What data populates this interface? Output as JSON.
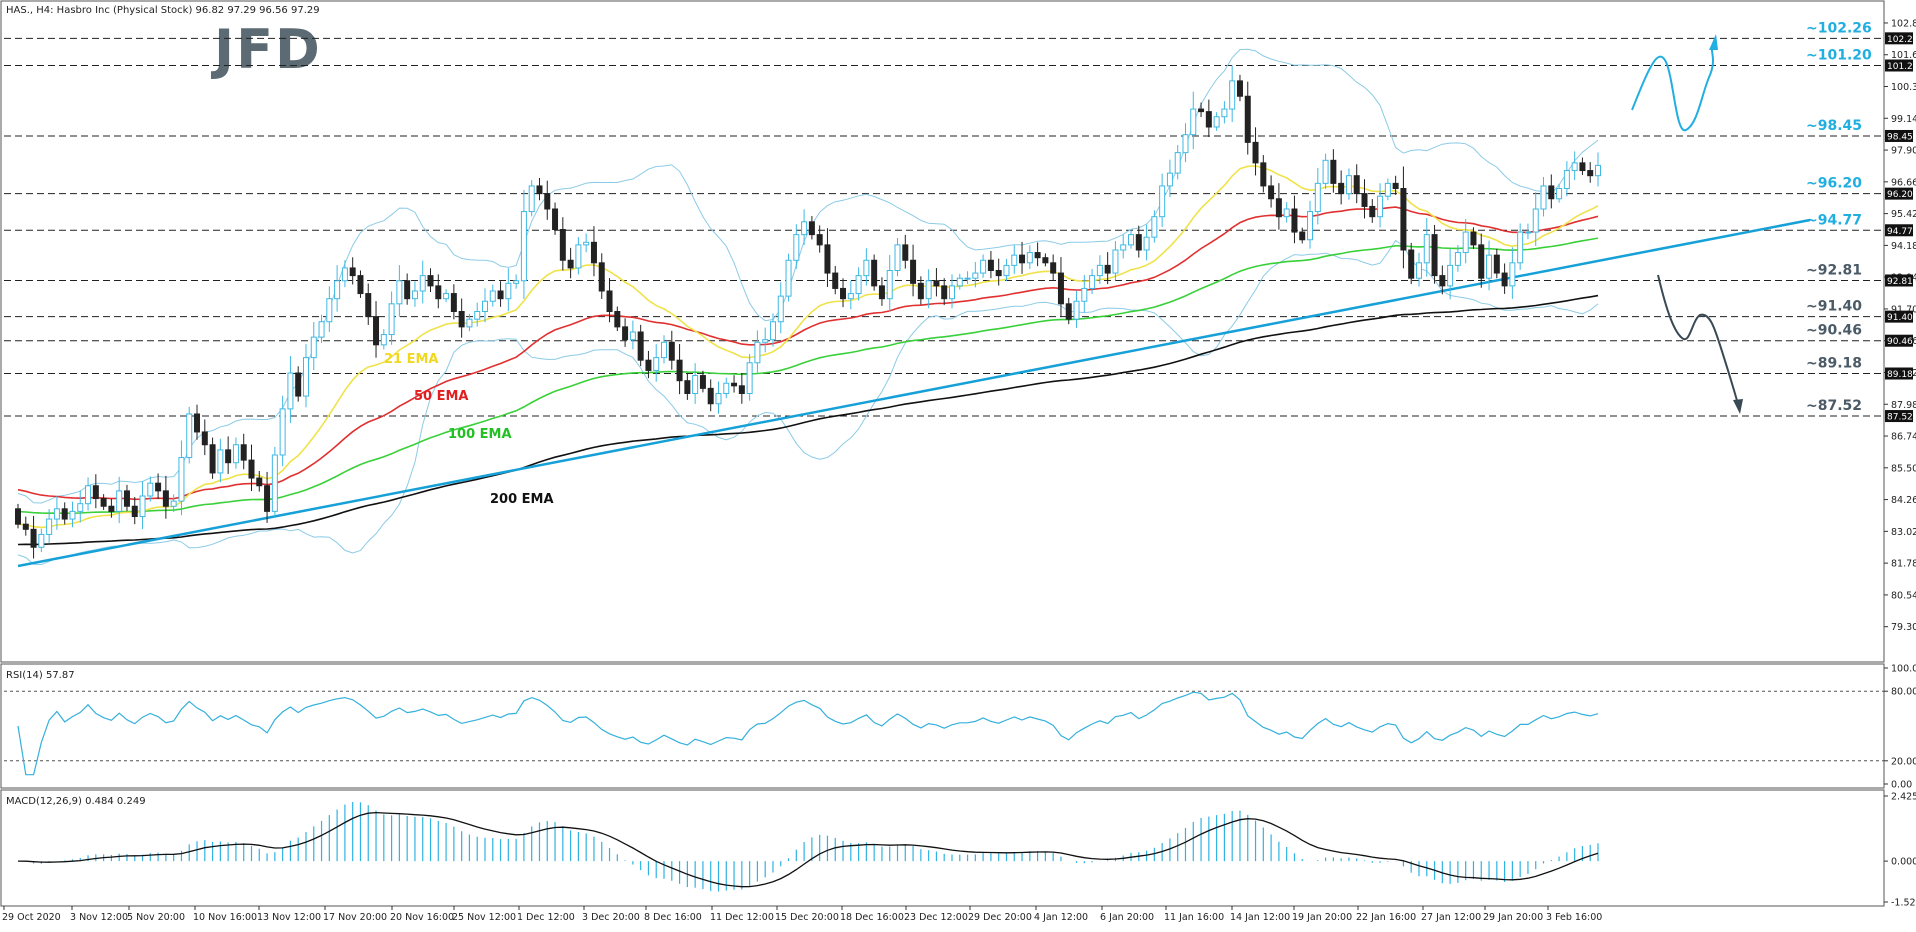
{
  "header": {
    "instrument": "HAS., H4:  Hasbro Inc (Physical Stock)  96.82 97.29 96.56 97.29",
    "logo": "JFD"
  },
  "colors": {
    "up_candle": "#3fb8e4",
    "down_candle": "#222222",
    "ema21": "#f0e24a",
    "ema50": "#e03030",
    "ema100": "#3ad03a",
    "ema200": "#111111",
    "bollinger": "#8ccbe6",
    "trendline": "#16a0d8",
    "annotation": "#21aee0",
    "rsi": "#35b0dc",
    "macd_hist": "#2fb3e2",
    "macd_signal": "#111111",
    "bearish_path": "#3a4a55"
  },
  "chart_data": [
    {
      "type": "candlestick",
      "title": "HAS., H4:  Hasbro Inc (Physical Stock)  96.82 97.29 96.56 97.29",
      "ylim": [
        78.0,
        103.6
      ],
      "y_ticks": [
        "102.86",
        "101.62",
        "100.38",
        "99.14",
        "97.90",
        "96.66",
        "95.42",
        "94.18",
        "92.94",
        "91.70",
        "90.46",
        "89.22",
        "87.98",
        "86.74",
        "85.50",
        "84.26",
        "83.02",
        "81.78",
        "80.54",
        "79.30"
      ],
      "x_ticks": [
        "29 Oct 2020",
        "3 Nov 12:00",
        "5 Nov 20:00",
        "10 Nov 16:00",
        "13 Nov 12:00",
        "17 Nov 20:00",
        "20 Nov 16:00",
        "25 Nov 12:00",
        "1 Dec 12:00",
        "3 Dec 20:00",
        "8 Dec 16:00",
        "11 Dec 12:00",
        "15 Dec 20:00",
        "18 Dec 16:00",
        "23 Dec 12:00",
        "29 Dec 20:00",
        "4 Jan 12:00",
        "6 Jan 20:00",
        "11 Jan 16:00",
        "14 Jan 12:00",
        "19 Jan 20:00",
        "22 Jan 16:00",
        "27 Jan 12:00",
        "29 Jan 20:00",
        "3 Feb 16:00"
      ],
      "closes": [
        83.3,
        83.1,
        82.4,
        82.9,
        83.5,
        83.9,
        83.5,
        83.8,
        84.1,
        84.8,
        84.3,
        84.0,
        83.8,
        84.6,
        84.0,
        83.6,
        84.4,
        84.9,
        84.6,
        84.0,
        84.2,
        85.9,
        87.6,
        86.9,
        86.4,
        85.3,
        86.2,
        85.7,
        86.4,
        85.8,
        85.1,
        84.8,
        83.8,
        86.0,
        87.8,
        89.2,
        88.3,
        89.8,
        90.6,
        91.2,
        92.1,
        92.8,
        93.3,
        93.0,
        92.3,
        91.4,
        90.3,
        90.7,
        91.9,
        92.8,
        92.1,
        92.4,
        93.0,
        92.6,
        92.1,
        92.3,
        91.6,
        91.0,
        91.3,
        91.6,
        92.0,
        92.4,
        92.1,
        92.7,
        92.8,
        95.5,
        96.5,
        96.2,
        95.6,
        94.8,
        93.6,
        93.3,
        94.2,
        94.3,
        93.5,
        92.4,
        91.6,
        91.0,
        90.5,
        90.8,
        89.7,
        89.3,
        89.8,
        90.4,
        89.7,
        88.9,
        88.4,
        89.1,
        88.6,
        88.0,
        88.4,
        88.8,
        88.7,
        88.4,
        89.6,
        90.4,
        90.5,
        91.2,
        92.2,
        93.6,
        94.6,
        95.1,
        94.6,
        94.2,
        93.1,
        92.5,
        92.1,
        92.3,
        93.0,
        93.6,
        92.6,
        92.1,
        93.2,
        94.2,
        93.6,
        92.7,
        92.1,
        92.8,
        92.6,
        92.1,
        92.6,
        92.9,
        92.9,
        93.1,
        93.6,
        93.2,
        93.0,
        93.4,
        93.8,
        93.5,
        93.9,
        93.7,
        93.5,
        93.1,
        91.9,
        91.3,
        92.0,
        92.5,
        93.0,
        93.4,
        93.1,
        94.0,
        94.2,
        94.6,
        94.0,
        94.5,
        95.3,
        96.5,
        97.0,
        97.8,
        98.5,
        99.5,
        99.4,
        98.8,
        99.2,
        99.5,
        100.6,
        100.0,
        98.2,
        97.4,
        96.5,
        96.0,
        95.3,
        95.6,
        94.7,
        94.4,
        95.5,
        96.6,
        97.5,
        96.6,
        96.2,
        96.9,
        96.2,
        95.7,
        95.3,
        96.1,
        96.6,
        96.4,
        94.0,
        92.9,
        93.5,
        94.6,
        93.0,
        92.6,
        93.4,
        93.9,
        94.7,
        94.2,
        92.9,
        93.8,
        93.1,
        92.6,
        93.5,
        94.7,
        94.7,
        95.6,
        96.5,
        96.0,
        96.4,
        97.1,
        97.4,
        97.1,
        96.9,
        97.3
      ]
    },
    {
      "type": "line",
      "title": "RSI(14) 57.87",
      "ylim": [
        0,
        100
      ],
      "y_ticks": [
        "100.00",
        "80.00",
        "20.00",
        "0.00"
      ],
      "levels": [
        80,
        20
      ]
    },
    {
      "type": "bar",
      "title": "MACD(12,26,9) 0.484 0.249",
      "ylim": [
        -1.523,
        2.425
      ],
      "y_ticks": [
        "2.425",
        "0.000",
        "-1.523"
      ]
    }
  ],
  "indicator_labels": {
    "ema21": "21 EMA",
    "ema50": "50 EMA",
    "ema100": "100 EMA",
    "ema200": "200 EMA"
  },
  "levels": [
    {
      "label": "~102.26",
      "tag": "102.26",
      "value": 102.26
    },
    {
      "label": "~101.20",
      "tag": "101.20",
      "value": 101.2
    },
    {
      "label": "~98.45",
      "tag": "98.45",
      "value": 98.45
    },
    {
      "label": "~96.20",
      "tag": "96.20",
      "value": 96.2
    },
    {
      "label": "~94.77",
      "tag": "94.77",
      "value": 94.77
    },
    {
      "label": "~92.81",
      "tag": "92.81",
      "value": 92.81
    },
    {
      "label": "~91.40",
      "tag": "91.40",
      "value": 91.4
    },
    {
      "label": "~90.46",
      "tag": "90.46",
      "value": 90.46
    },
    {
      "label": "~89.18",
      "tag": "89.18",
      "value": 89.18
    },
    {
      "label": "~87.52",
      "tag": "87.52",
      "value": 87.52
    }
  ]
}
